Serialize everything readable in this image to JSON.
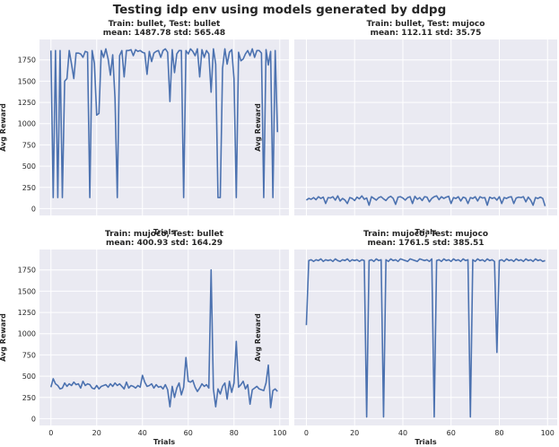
{
  "figure": {
    "title": "Testing idp env using models generated by ddpg",
    "colors": {
      "background": "#eaeaf2",
      "grid": "#ffffff",
      "line": "#4c72b0",
      "text": "#262626"
    }
  },
  "chart_data": [
    {
      "type": "line",
      "title_line1": "Train: bullet, Test: bullet",
      "title_line2": "mean: 1487.78 std: 565.48",
      "xlabel": "Trials",
      "ylabel": "Avg Reward",
      "xlim": [
        -5,
        104
      ],
      "ylim": [
        -80,
        1990
      ],
      "xticks": [
        0,
        20,
        40,
        60,
        80,
        100
      ],
      "yticks": [
        0,
        250,
        500,
        750,
        1000,
        1250,
        1500,
        1750
      ],
      "show_xtick_labels": false,
      "x": [
        0,
        1,
        2,
        3,
        4,
        5,
        6,
        7,
        8,
        9,
        10,
        11,
        12,
        13,
        14,
        15,
        16,
        17,
        18,
        19,
        20,
        21,
        22,
        23,
        24,
        25,
        26,
        27,
        28,
        29,
        30,
        31,
        32,
        33,
        34,
        35,
        36,
        37,
        38,
        39,
        40,
        41,
        42,
        43,
        44,
        45,
        46,
        47,
        48,
        49,
        50,
        51,
        52,
        53,
        54,
        55,
        56,
        57,
        58,
        59,
        60,
        61,
        62,
        63,
        64,
        65,
        66,
        67,
        68,
        69,
        70,
        71,
        72,
        73,
        74,
        75,
        76,
        77,
        78,
        79,
        80,
        81,
        82,
        83,
        84,
        85,
        86,
        87,
        88,
        89,
        90,
        91,
        92,
        93,
        94,
        95,
        96,
        97,
        98,
        99
      ],
      "values": [
        1860,
        130,
        1860,
        130,
        1860,
        130,
        1500,
        1530,
        1860,
        1700,
        1530,
        1830,
        1830,
        1820,
        1780,
        1850,
        1840,
        130,
        1860,
        1710,
        1100,
        1120,
        1860,
        1780,
        1880,
        1760,
        1570,
        1810,
        1300,
        130,
        1800,
        1860,
        1550,
        1860,
        1860,
        1870,
        1800,
        1870,
        1850,
        1860,
        1840,
        1830,
        1580,
        1850,
        1730,
        1830,
        1850,
        1860,
        1780,
        1860,
        1880,
        1840,
        1260,
        1870,
        1600,
        1820,
        1860,
        1860,
        130,
        1860,
        1820,
        1880,
        1850,
        1800,
        1880,
        1550,
        1870,
        1780,
        1860,
        1820,
        1370,
        1880,
        1700,
        130,
        130,
        1650,
        1880,
        1700,
        1840,
        1870,
        1530,
        130,
        1840,
        1740,
        1760,
        1820,
        1860,
        1800,
        1880,
        1780,
        1860,
        1860,
        1830,
        130,
        1870,
        1690,
        1850,
        130,
        1860,
        900
      ]
    },
    {
      "type": "line",
      "title_line1": "Train: bullet, Test: mujoco",
      "title_line2": "mean: 112.11 std: 35.75",
      "xlabel": "Trials",
      "ylabel": "Avg Reward",
      "xlim": [
        -5,
        104
      ],
      "ylim": [
        -80,
        1990
      ],
      "xticks": [
        0,
        20,
        40,
        60,
        80,
        100
      ],
      "yticks": [
        0,
        250,
        500,
        750,
        1000,
        1250,
        1500,
        1750
      ],
      "show_xtick_labels": false,
      "show_ytick_labels": false,
      "x": [
        0,
        1,
        2,
        3,
        4,
        5,
        6,
        7,
        8,
        9,
        10,
        11,
        12,
        13,
        14,
        15,
        16,
        17,
        18,
        19,
        20,
        21,
        22,
        23,
        24,
        25,
        26,
        27,
        28,
        29,
        30,
        31,
        32,
        33,
        34,
        35,
        36,
        37,
        38,
        39,
        40,
        41,
        42,
        43,
        44,
        45,
        46,
        47,
        48,
        49,
        50,
        51,
        52,
        53,
        54,
        55,
        56,
        57,
        58,
        59,
        60,
        61,
        62,
        63,
        64,
        65,
        66,
        67,
        68,
        69,
        70,
        71,
        72,
        73,
        74,
        75,
        76,
        77,
        78,
        79,
        80,
        81,
        82,
        83,
        84,
        85,
        86,
        87,
        88,
        89,
        90,
        91,
        92,
        93,
        94,
        95,
        96,
        97,
        98,
        99
      ],
      "values": [
        100,
        120,
        110,
        130,
        105,
        140,
        120,
        135,
        60,
        130,
        125,
        140,
        100,
        150,
        90,
        120,
        100,
        60,
        130,
        120,
        95,
        135,
        115,
        150,
        110,
        125,
        40,
        140,
        120,
        100,
        130,
        140,
        115,
        95,
        130,
        145,
        120,
        50,
        135,
        140,
        125,
        100,
        130,
        140,
        60,
        145,
        110,
        130,
        95,
        140,
        135,
        80,
        120,
        140,
        150,
        105,
        140,
        120,
        135,
        145,
        60,
        130,
        120,
        140,
        90,
        135,
        125,
        60,
        130,
        120,
        140,
        90,
        140,
        125,
        130,
        40,
        135,
        120,
        130,
        100,
        140,
        60,
        130,
        120,
        135,
        140,
        60,
        125,
        135,
        130,
        140,
        80,
        135,
        100,
        40,
        130,
        120,
        135,
        120,
        30
      ]
    },
    {
      "type": "line",
      "title_line1": "Train: mujoco, Test: bullet",
      "title_line2": "mean: 400.93 std: 164.29",
      "xlabel": "Trials",
      "ylabel": "Avg Reward",
      "xlim": [
        -5,
        104
      ],
      "ylim": [
        -80,
        1990
      ],
      "xticks": [
        0,
        20,
        40,
        60,
        80,
        100
      ],
      "yticks": [
        0,
        250,
        500,
        750,
        1000,
        1250,
        1500,
        1750
      ],
      "x": [
        0,
        1,
        2,
        3,
        4,
        5,
        6,
        7,
        8,
        9,
        10,
        11,
        12,
        13,
        14,
        15,
        16,
        17,
        18,
        19,
        20,
        21,
        22,
        23,
        24,
        25,
        26,
        27,
        28,
        29,
        30,
        31,
        32,
        33,
        34,
        35,
        36,
        37,
        38,
        39,
        40,
        41,
        42,
        43,
        44,
        45,
        46,
        47,
        48,
        49,
        50,
        51,
        52,
        53,
        54,
        55,
        56,
        57,
        58,
        59,
        60,
        61,
        62,
        63,
        64,
        65,
        66,
        67,
        68,
        69,
        70,
        71,
        72,
        73,
        74,
        75,
        76,
        77,
        78,
        79,
        80,
        81,
        82,
        83,
        84,
        85,
        86,
        87,
        88,
        89,
        90,
        91,
        92,
        93,
        94,
        95,
        96,
        97,
        98,
        99
      ],
      "values": [
        370,
        470,
        410,
        390,
        350,
        360,
        420,
        380,
        410,
        390,
        430,
        400,
        410,
        360,
        440,
        390,
        410,
        400,
        360,
        350,
        390,
        350,
        380,
        390,
        400,
        370,
        410,
        380,
        420,
        390,
        410,
        380,
        350,
        430,
        360,
        390,
        380,
        360,
        390,
        370,
        510,
        430,
        380,
        390,
        410,
        360,
        400,
        370,
        380,
        350,
        400,
        340,
        140,
        380,
        250,
        360,
        420,
        280,
        370,
        720,
        440,
        430,
        450,
        370,
        320,
        360,
        410,
        380,
        400,
        360,
        1750,
        350,
        140,
        350,
        290,
        380,
        420,
        230,
        440,
        310,
        420,
        910,
        370,
        400,
        440,
        350,
        400,
        170,
        340,
        360,
        380,
        350,
        340,
        330,
        420,
        630,
        130,
        330,
        350,
        320
      ]
    },
    {
      "type": "line",
      "title_line1": "Train: mujoco, Test: mujoco",
      "title_line2": "mean: 1761.5 std: 385.51",
      "xlabel": "Trials",
      "ylabel": "Avg Reward",
      "xlim": [
        -5,
        104
      ],
      "ylim": [
        -80,
        1990
      ],
      "xticks": [
        0,
        20,
        40,
        60,
        80,
        100
      ],
      "yticks": [
        0,
        250,
        500,
        750,
        1000,
        1250,
        1500,
        1750
      ],
      "show_ytick_labels": false,
      "x": [
        0,
        1,
        2,
        3,
        4,
        5,
        6,
        7,
        8,
        9,
        10,
        11,
        12,
        13,
        14,
        15,
        16,
        17,
        18,
        19,
        20,
        21,
        22,
        23,
        24,
        25,
        26,
        27,
        28,
        29,
        30,
        31,
        32,
        33,
        34,
        35,
        36,
        37,
        38,
        39,
        40,
        41,
        42,
        43,
        44,
        45,
        46,
        47,
        48,
        49,
        50,
        51,
        52,
        53,
        54,
        55,
        56,
        57,
        58,
        59,
        60,
        61,
        62,
        63,
        64,
        65,
        66,
        67,
        68,
        69,
        70,
        71,
        72,
        73,
        74,
        75,
        76,
        77,
        78,
        79,
        80,
        81,
        82,
        83,
        84,
        85,
        86,
        87,
        88,
        89,
        90,
        91,
        92,
        93,
        94,
        95,
        96,
        97,
        98,
        99
      ],
      "values": [
        1100,
        1860,
        1870,
        1850,
        1870,
        1860,
        1880,
        1850,
        1870,
        1860,
        1870,
        1850,
        1880,
        1860,
        1850,
        1870,
        1860,
        1880,
        1850,
        1870,
        1860,
        1870,
        1850,
        1870,
        1860,
        20,
        1860,
        1870,
        1850,
        1880,
        1860,
        1870,
        20,
        1870,
        1850,
        1880,
        1860,
        1870,
        1850,
        1880,
        1870,
        1860,
        1850,
        1880,
        1870,
        1860,
        1850,
        1880,
        1870,
        1860,
        1870,
        1850,
        1880,
        20,
        1860,
        1870,
        1850,
        1880,
        1860,
        1870,
        1850,
        1880,
        1860,
        1870,
        1850,
        1880,
        1860,
        1870,
        20,
        1870,
        1850,
        1880,
        1860,
        1870,
        1850,
        1880,
        1860,
        1870,
        1850,
        780,
        1860,
        1870,
        1850,
        1880,
        1860,
        1870,
        1850,
        1880,
        1860,
        1870,
        1850,
        1880,
        1860,
        1870,
        1850,
        1880,
        1860,
        1870,
        1850,
        1860
      ]
    }
  ]
}
